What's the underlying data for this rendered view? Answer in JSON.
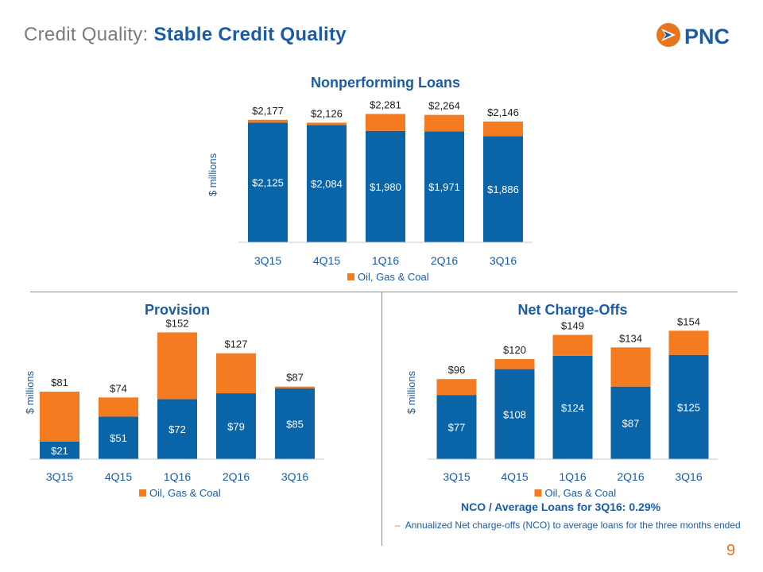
{
  "header": {
    "title_prefix": "Credit Quality:",
    "title_main": "Stable Credit Quality"
  },
  "logo": {
    "text": "PNC",
    "icon": "pnc-flag-logo-icon",
    "color": "#e8741c"
  },
  "colors": {
    "blue": "#0a64a8",
    "orange": "#f47b20",
    "title_blue": "#1a5ca5",
    "divider": "#8a8a8a"
  },
  "footer": {
    "nco_text": "NCO / Average Loans for 3Q16: 0.29%",
    "footnote_dash": "–",
    "footnote": "Annualized Net charge-offs (NCO) to average loans for the three months ended",
    "page_number": "9"
  },
  "chart_data": [
    {
      "id": "npl",
      "type": "bar",
      "stacked": true,
      "title": "Nonperforming Loans",
      "ylabel": "$ millions",
      "categories": [
        "3Q15",
        "4Q15",
        "1Q16",
        "2Q16",
        "3Q16"
      ],
      "series": [
        {
          "name": "",
          "color": "#0a64a8",
          "values": [
            2125,
            2084,
            1980,
            1971,
            1886
          ],
          "labels": [
            "$2,125",
            "$2,084",
            "$1,980",
            "$1,971",
            "$1,886"
          ]
        },
        {
          "name": "Oil, Gas & Coal",
          "color": "#f47b20",
          "values": [
            52,
            42,
            301,
            293,
            260
          ]
        }
      ],
      "totals": [
        2177,
        2126,
        2281,
        2264,
        2146
      ],
      "total_labels": [
        "$2,177",
        "$2,126",
        "$2,281",
        "$2,264",
        "$2,146"
      ],
      "ylim": [
        0,
        2400
      ],
      "legend": "bottom",
      "grid": false
    },
    {
      "id": "provision",
      "type": "bar",
      "stacked": true,
      "title": "Provision",
      "ylabel": "$ millions",
      "categories": [
        "3Q15",
        "4Q15",
        "1Q16",
        "2Q16",
        "3Q16"
      ],
      "series": [
        {
          "name": "",
          "color": "#0a64a8",
          "values": [
            21,
            51,
            72,
            79,
            85
          ],
          "labels": [
            "$21",
            "$51",
            "$72",
            "$79",
            "$85"
          ]
        },
        {
          "name": "Oil, Gas & Coal",
          "color": "#f47b20",
          "values": [
            60,
            23,
            80,
            48,
            2
          ]
        }
      ],
      "totals": [
        81,
        74,
        152,
        127,
        87
      ],
      "total_labels": [
        "$81",
        "$74",
        "$152",
        "$127",
        "$87"
      ],
      "ylim": [
        0,
        160
      ],
      "legend": "bottom",
      "grid": false
    },
    {
      "id": "nco",
      "type": "bar",
      "stacked": true,
      "title": "Net Charge-Offs",
      "ylabel": "$ millions",
      "categories": [
        "3Q15",
        "4Q15",
        "1Q16",
        "2Q16",
        "3Q16"
      ],
      "series": [
        {
          "name": "",
          "color": "#0a64a8",
          "values": [
            77,
            108,
            124,
            87,
            125
          ],
          "labels": [
            "$77",
            "$108",
            "$124",
            "$87",
            "$125"
          ]
        },
        {
          "name": "Oil, Gas & Coal",
          "color": "#f47b20",
          "values": [
            19,
            12,
            25,
            47,
            29
          ]
        }
      ],
      "totals": [
        96,
        120,
        149,
        134,
        154
      ],
      "total_labels": [
        "$96",
        "$120",
        "$149",
        "$134",
        "$154"
      ],
      "ylim": [
        0,
        160
      ],
      "legend": "bottom",
      "grid": false
    }
  ]
}
